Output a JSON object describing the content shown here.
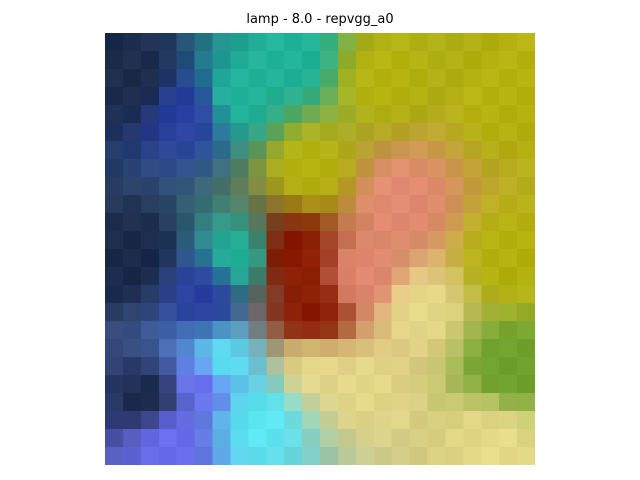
{
  "figure": {
    "title": "lamp - 8.0 - repvgg_a0"
  },
  "image": {
    "kind": "pixelated photo with saliency heatmap overlay",
    "grid_cols": 24,
    "grid_rows": 24,
    "dominant_colors": {
      "navy": "#1c2a4a",
      "blue": "#2a3fa0",
      "teal": "#1fb39a",
      "olive_yellow": "#b5b20f",
      "green": "#6ea22c",
      "dark_red": "#8a1800",
      "salmon": "#e38a72",
      "pale_yellow": "#e6d98a",
      "cyan": "#5ae6f2",
      "violet_blue": "#6b6df0"
    }
  }
}
